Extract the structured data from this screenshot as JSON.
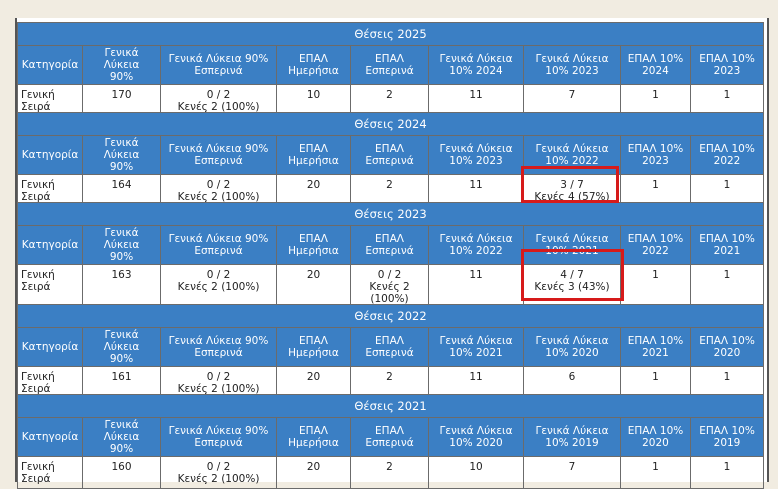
{
  "blocks": [
    {
      "title": "Θέσεις 2025",
      "headers": [
        [
          "Κατηγορία"
        ],
        [
          "Γενικά Λύκεια",
          "90%"
        ],
        [
          "Γενικά Λύκεια 90%",
          "Εσπερινά"
        ],
        [
          "ΕΠΑΛ",
          "Ημερήσια"
        ],
        [
          "ΕΠΑΛ",
          "Εσπερινά"
        ],
        [
          "Γενικά Λύκεια",
          "10% 2024"
        ],
        [
          "Γενικά Λύκεια",
          "10% 2023"
        ],
        [
          "ΕΠΑΛ 10%",
          "2024"
        ],
        [
          "ΕΠΑΛ 10%",
          "2023"
        ]
      ],
      "row": [
        [
          "Γενική",
          "Σειρά"
        ],
        [
          "170"
        ],
        [
          "0 / 2",
          "Κενές 2 (100%)"
        ],
        [
          "10"
        ],
        [
          "2"
        ],
        [
          "11"
        ],
        [
          "7"
        ],
        [
          "1"
        ],
        [
          "1"
        ]
      ]
    },
    {
      "title": "Θέσεις 2024",
      "headers": [
        [
          "Κατηγορία"
        ],
        [
          "Γενικά Λύκεια",
          "90%"
        ],
        [
          "Γενικά Λύκεια 90%",
          "Εσπερινά"
        ],
        [
          "ΕΠΑΛ",
          "Ημερήσια"
        ],
        [
          "ΕΠΑΛ",
          "Εσπερινά"
        ],
        [
          "Γενικά Λύκεια",
          "10% 2023"
        ],
        [
          "Γενικά Λύκεια",
          "10% 2022"
        ],
        [
          "ΕΠΑΛ 10%",
          "2023"
        ],
        [
          "ΕΠΑΛ 10%",
          "2022"
        ]
      ],
      "row": [
        [
          "Γενική",
          "Σειρά"
        ],
        [
          "164"
        ],
        [
          "0 / 2",
          "Κενές 2 (100%)"
        ],
        [
          "20"
        ],
        [
          "2"
        ],
        [
          "11"
        ],
        [
          "3 / 7",
          "Κενές 4 (57%)"
        ],
        [
          "1"
        ],
        [
          "1"
        ]
      ]
    },
    {
      "title": "Θέσεις 2023",
      "headers": [
        [
          "Κατηγορία"
        ],
        [
          "Γενικά Λύκεια",
          "90%"
        ],
        [
          "Γενικά Λύκεια 90%",
          "Εσπερινά"
        ],
        [
          "ΕΠΑΛ",
          "Ημερήσια"
        ],
        [
          "ΕΠΑΛ",
          "Εσπερινά"
        ],
        [
          "Γενικά Λύκεια",
          "10% 2022"
        ],
        [
          "Γενικά Λύκεια",
          "10% 2021"
        ],
        [
          "ΕΠΑΛ 10%",
          "2022"
        ],
        [
          "ΕΠΑΛ 10%",
          "2021"
        ]
      ],
      "row": [
        [
          "Γενική",
          "Σειρά"
        ],
        [
          "163"
        ],
        [
          "0 / 2",
          "Κενές 2 (100%)"
        ],
        [
          "20"
        ],
        [
          "0 / 2",
          "Κενές 2",
          "(100%)"
        ],
        [
          "11"
        ],
        [
          "4 / 7",
          "Κενές 3 (43%)"
        ],
        [
          "1"
        ],
        [
          "1"
        ]
      ]
    },
    {
      "title": "Θέσεις 2022",
      "headers": [
        [
          "Κατηγορία"
        ],
        [
          "Γενικά Λύκεια",
          "90%"
        ],
        [
          "Γενικά Λύκεια 90%",
          "Εσπερινά"
        ],
        [
          "ΕΠΑΛ",
          "Ημερήσια"
        ],
        [
          "ΕΠΑΛ",
          "Εσπερινά"
        ],
        [
          "Γενικά Λύκεια",
          "10% 2021"
        ],
        [
          "Γενικά Λύκεια",
          "10% 2020"
        ],
        [
          "ΕΠΑΛ 10%",
          "2021"
        ],
        [
          "ΕΠΑΛ 10%",
          "2020"
        ]
      ],
      "row": [
        [
          "Γενική",
          "Σειρά"
        ],
        [
          "161"
        ],
        [
          "0 / 2",
          "Κενές 2 (100%)"
        ],
        [
          "20"
        ],
        [
          "2"
        ],
        [
          "11"
        ],
        [
          "6"
        ],
        [
          "1"
        ],
        [
          "1"
        ]
      ]
    },
    {
      "title": "Θέσεις 2021",
      "headers": [
        [
          "Κατηγορία"
        ],
        [
          "Γενικά Λύκεια",
          "90%"
        ],
        [
          "Γενικά Λύκεια 90%",
          "Εσπερινά"
        ],
        [
          "ΕΠΑΛ",
          "Ημερήσια"
        ],
        [
          "ΕΠΑΛ",
          "Εσπερινά"
        ],
        [
          "Γενικά Λύκεια",
          "10% 2020"
        ],
        [
          "Γενικά Λύκεια",
          "10% 2019"
        ],
        [
          "ΕΠΑΛ 10%",
          "2020"
        ],
        [
          "ΕΠΑΛ 10%",
          "2019"
        ]
      ],
      "row": [
        [
          "Γενική",
          "Σειρά"
        ],
        [
          "160"
        ],
        [
          "0 / 2",
          "Κενές 2 (100%)"
        ],
        [
          "20"
        ],
        [
          "2"
        ],
        [
          "10"
        ],
        [
          "7"
        ],
        [
          "1"
        ],
        [
          "1"
        ]
      ]
    }
  ]
}
